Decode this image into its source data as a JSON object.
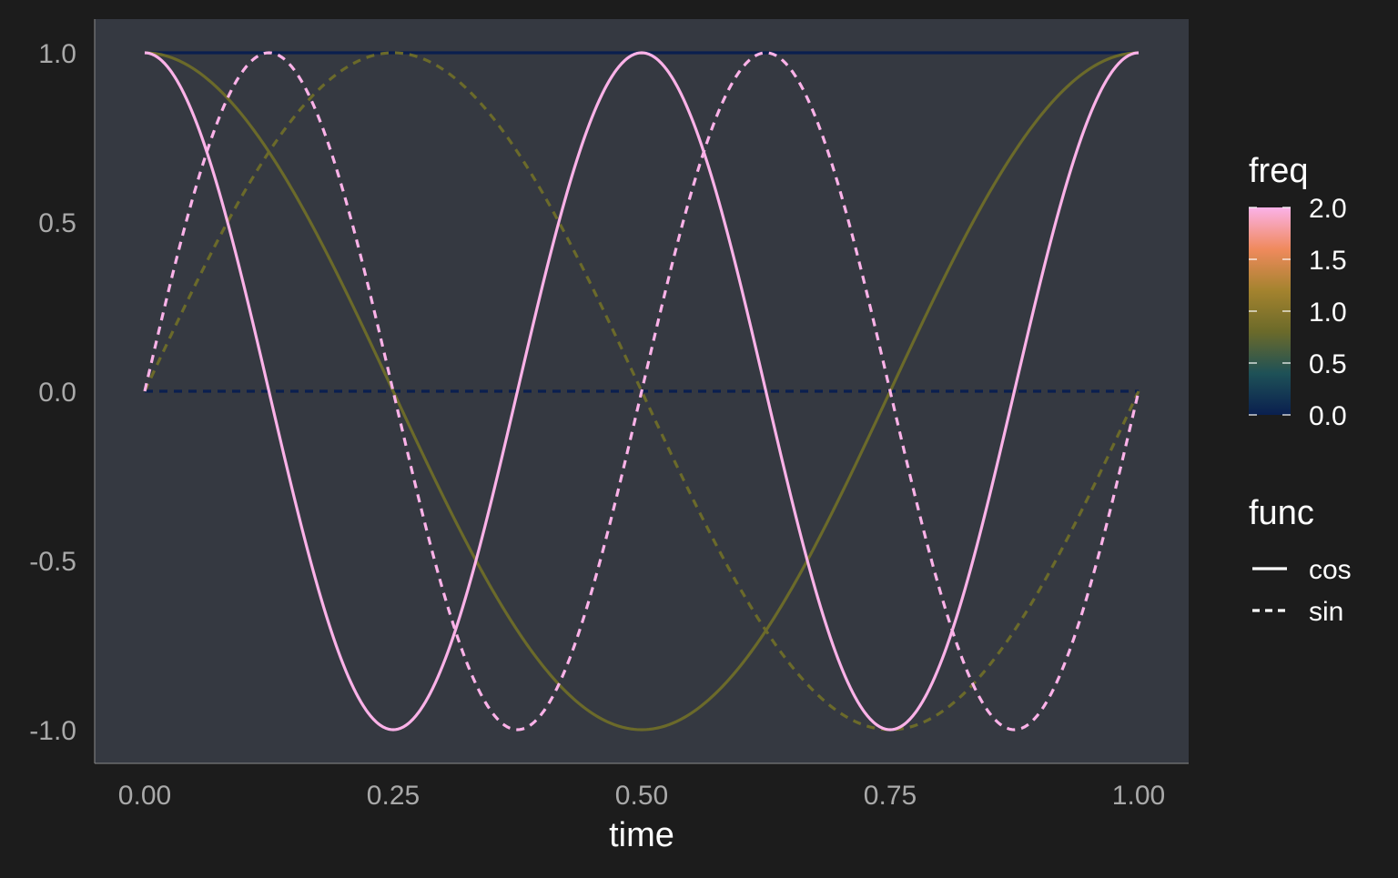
{
  "colors": {
    "background": "#1c1c1c",
    "panel": "#353941",
    "axis_text": "#a9a9a9",
    "title_text": "#ffffff",
    "colorbar_stops": [
      "#0a1f4f",
      "#1e5157",
      "#6b6a2a",
      "#a4832e",
      "#f08a5d",
      "#fbb2e8"
    ]
  },
  "chart_data": {
    "type": "line",
    "xlabel": "time",
    "ylabel": "",
    "xlim": [
      0,
      1
    ],
    "ylim": [
      -1,
      1
    ],
    "x_ticks": [
      0,
      0.25,
      0.5,
      0.75,
      1
    ],
    "x_tick_labels": [
      "0.00",
      "0.25",
      "0.50",
      "0.75",
      "1.00"
    ],
    "y_ticks": [
      -1,
      -0.5,
      0,
      0.5,
      1
    ],
    "y_tick_labels": [
      "-1.0",
      "-0.5",
      "0.0",
      "0.5",
      "1.0"
    ],
    "grid": false,
    "series": [
      {
        "func": "cos",
        "freq": 0,
        "color": "#0a1f4f",
        "dash": "solid"
      },
      {
        "func": "sin",
        "freq": 0,
        "color": "#0a1f4f",
        "dash": "dashed"
      },
      {
        "func": "cos",
        "freq": 1,
        "color": "#6b6a2a",
        "dash": "solid"
      },
      {
        "func": "sin",
        "freq": 1,
        "color": "#6b6a2a",
        "dash": "dashed"
      },
      {
        "func": "cos",
        "freq": 2,
        "color": "#fbb2e8",
        "dash": "solid"
      },
      {
        "func": "sin",
        "freq": 2,
        "color": "#fbb2e8",
        "dash": "dashed"
      }
    ],
    "legend": {
      "placement": "right",
      "color": {
        "title": "freq",
        "range": [
          0,
          2
        ],
        "ticks": [
          2,
          1.5,
          1,
          0.5,
          0
        ],
        "tick_labels": [
          "2.0",
          "1.5",
          "1.0",
          "0.5",
          "0.0"
        ]
      },
      "linetype": {
        "title": "func",
        "entries": [
          {
            "label": "cos",
            "dash": "solid"
          },
          {
            "label": "sin",
            "dash": "dashed"
          }
        ]
      }
    }
  }
}
